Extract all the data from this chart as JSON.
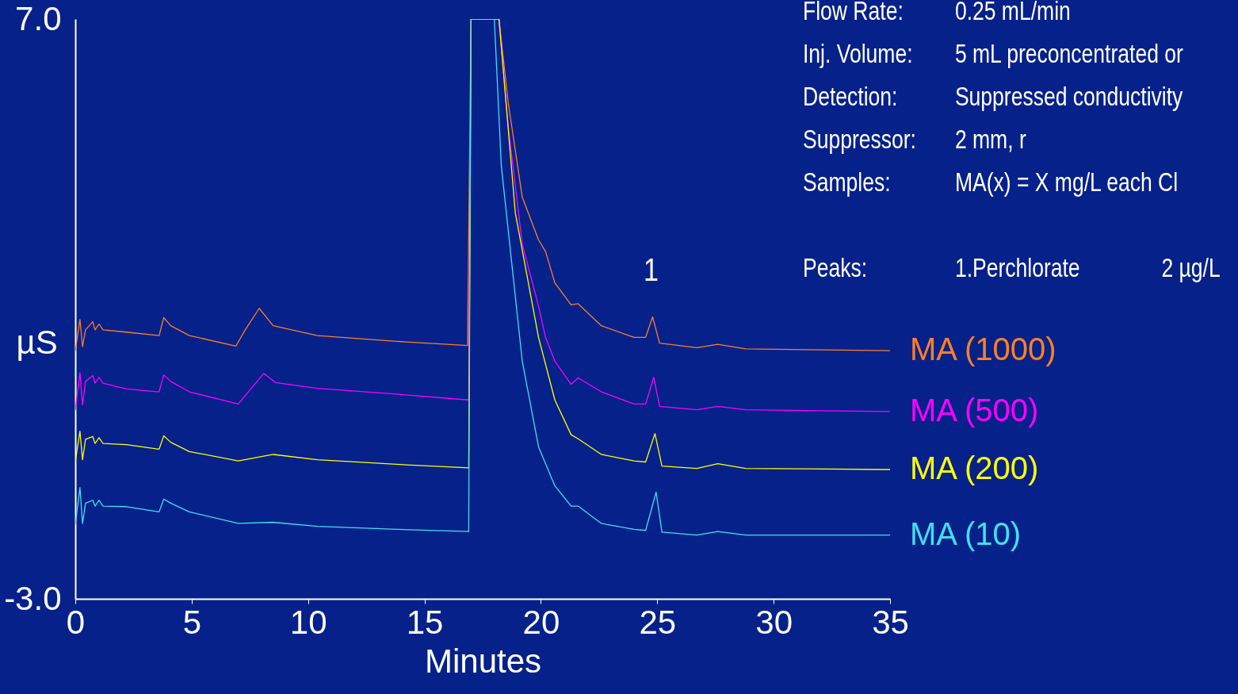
{
  "chart_data": {
    "type": "line",
    "xlabel": "Minutes",
    "ylabel": "µS",
    "xlim": [
      0,
      35
    ],
    "ylim": [
      -3,
      7
    ],
    "xticks": [
      0,
      5,
      10,
      15,
      20,
      25,
      30,
      35
    ],
    "yticks": [
      {
        "value": -3,
        "label": "-3.0"
      },
      {
        "value": 7,
        "label": "7.0"
      }
    ],
    "grid": false,
    "marker": "none",
    "line_style": "solid",
    "series": [
      {
        "name": "MA (1000)",
        "color": "#ff7f27",
        "x": [
          0,
          0.2,
          0.31,
          0.44,
          0.75,
          0.85,
          1.02,
          1.19,
          2.2,
          3.6,
          3.8,
          4.1,
          4.9,
          6.9,
          7.3,
          7.9,
          8.5,
          10.4,
          13.8,
          16.85,
          17.0,
          18.2,
          18.6,
          19.2,
          19.9,
          20.2,
          20.6,
          21.3,
          21.6,
          22.6,
          24.0,
          24.5,
          24.8,
          25.1,
          26.7,
          27.6,
          28.8,
          35
        ],
        "values": [
          1.27,
          1.82,
          1.35,
          1.64,
          1.78,
          1.64,
          1.74,
          1.64,
          1.6,
          1.54,
          1.85,
          1.71,
          1.54,
          1.36,
          1.64,
          2.01,
          1.71,
          1.54,
          1.44,
          1.37,
          7,
          7,
          5.55,
          3.93,
          3.19,
          2.99,
          2.45,
          2.07,
          2.09,
          1.71,
          1.51,
          1.51,
          1.86,
          1.41,
          1.33,
          1.39,
          1.31,
          1.28
        ]
      },
      {
        "name": "MA (500)",
        "color": "#ff00ff",
        "x": [
          0,
          0.2,
          0.31,
          0.44,
          0.75,
          0.85,
          1.02,
          1.19,
          2.2,
          3.6,
          3.8,
          4.1,
          4.9,
          7.0,
          8.1,
          8.6,
          10.4,
          13.8,
          16.9,
          17.0,
          18.2,
          18.6,
          19.2,
          19.9,
          20.2,
          20.6,
          21.3,
          21.6,
          22.6,
          24.0,
          24.5,
          24.85,
          25.1,
          26.7,
          27.6,
          28.8,
          35
        ],
        "values": [
          0.25,
          0.9,
          0.35,
          0.75,
          0.85,
          0.72,
          0.82,
          0.72,
          0.62,
          0.57,
          0.86,
          0.75,
          0.57,
          0.36,
          0.89,
          0.73,
          0.63,
          0.53,
          0.43,
          7,
          7,
          5.14,
          3.12,
          2.05,
          1.51,
          1.1,
          0.7,
          0.81,
          0.57,
          0.36,
          0.36,
          0.82,
          0.32,
          0.26,
          0.32,
          0.26,
          0.23
        ]
      },
      {
        "name": "MA (200)",
        "color": "#ffff00",
        "x": [
          0,
          0.2,
          0.31,
          0.44,
          0.75,
          0.85,
          1.02,
          1.19,
          2.2,
          3.6,
          3.8,
          4.1,
          4.9,
          7.0,
          8.5,
          10.4,
          13.8,
          16.9,
          17.0,
          18.2,
          18.9,
          19.9,
          20.6,
          21.3,
          21.6,
          22.6,
          24.0,
          24.5,
          24.9,
          25.2,
          26.7,
          27.6,
          28.8,
          35
        ],
        "values": [
          -0.64,
          -0.11,
          -0.6,
          -0.25,
          -0.2,
          -0.32,
          -0.22,
          -0.32,
          -0.34,
          -0.42,
          -0.19,
          -0.3,
          -0.46,
          -0.62,
          -0.51,
          -0.6,
          -0.68,
          -0.74,
          7,
          7,
          3.66,
          1.51,
          0.43,
          -0.17,
          -0.24,
          -0.51,
          -0.62,
          -0.64,
          -0.15,
          -0.71,
          -0.75,
          -0.67,
          -0.75,
          -0.77
        ]
      },
      {
        "name": "MA (10)",
        "color": "#40e0f0",
        "x": [
          0,
          0.2,
          0.31,
          0.44,
          0.75,
          0.85,
          1.02,
          1.19,
          2.2,
          3.6,
          3.8,
          4.1,
          4.9,
          7.0,
          8.5,
          10.4,
          13.8,
          16.9,
          17.0,
          18.0,
          18.3,
          19.2,
          19.9,
          20.6,
          21.3,
          21.6,
          22.6,
          24.0,
          24.5,
          24.95,
          25.2,
          26.7,
          27.6,
          28.8,
          35
        ],
        "values": [
          -1.72,
          -1.08,
          -1.7,
          -1.35,
          -1.3,
          -1.4,
          -1.3,
          -1.4,
          -1.41,
          -1.5,
          -1.28,
          -1.35,
          -1.5,
          -1.7,
          -1.68,
          -1.75,
          -1.8,
          -1.84,
          7,
          7,
          4.47,
          1.1,
          -0.38,
          -1.05,
          -1.4,
          -1.4,
          -1.7,
          -1.8,
          -1.82,
          -1.16,
          -1.85,
          -1.9,
          -1.84,
          -1.9,
          -1.9
        ]
      }
    ],
    "annotations": [
      "1",
      "Flow Rate:\t0.25 mL/min",
      "Inj. Volume:\t5 mL preconcentrated or",
      "Detection:\tSuppressed conductivity",
      "Suppressor:\t2 mm, r",
      "Samples:\tMA(x) = X mg/L each Cl",
      "Peaks:\t1.Perchlorate\t2 µg/L"
    ]
  }
}
